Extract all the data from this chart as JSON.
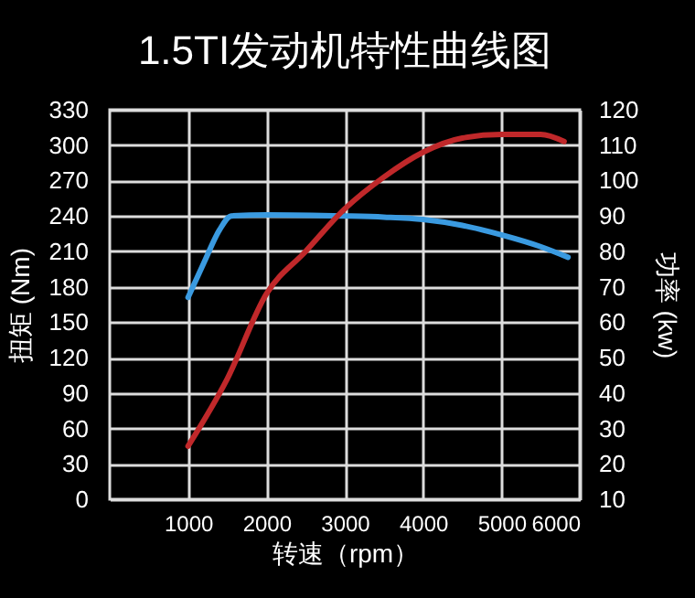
{
  "chart_data": {
    "type": "line",
    "title": "1.5TI发动机特性曲线图",
    "xlabel": "转速（rpm）",
    "ylabel": "扭矩 (Nm)",
    "y2label": "功率 (kw)",
    "xlim": [
      0,
      6000
    ],
    "xticks": [
      1000,
      2000,
      3000,
      4000,
      5000,
      6000
    ],
    "ylim": [
      0,
      330
    ],
    "yticks": [
      0,
      30,
      60,
      90,
      120,
      150,
      180,
      210,
      240,
      270,
      300,
      330
    ],
    "y2lim": [
      10,
      120
    ],
    "y2ticks": [
      10,
      20,
      30,
      40,
      50,
      60,
      70,
      80,
      90,
      100,
      110,
      120
    ],
    "grid": true,
    "series": [
      {
        "color": "#3a9ae0",
        "x": [
          1000,
          1200,
          1400,
          1550,
          2000,
          3000,
          3500,
          4000,
          4500,
          5000,
          5500,
          5850
        ],
        "values": [
          171,
          200,
          228,
          240,
          241,
          240,
          239,
          237,
          232,
          224,
          214,
          205
        ]
      },
      {
        "color": "#c0282a",
        "axis": "y2",
        "x": [
          1000,
          1500,
          2000,
          2500,
          3000,
          3500,
          4000,
          4500,
          5000,
          5500,
          5800
        ],
        "values": [
          25,
          44,
          68,
          80,
          92,
          101,
          108,
          112,
          113,
          113,
          111
        ]
      }
    ]
  }
}
